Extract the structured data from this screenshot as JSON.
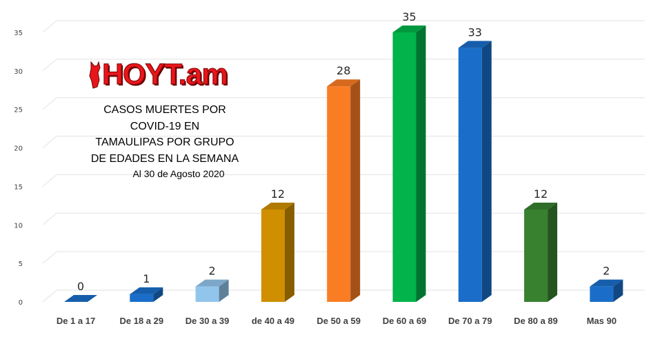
{
  "chart_data": {
    "type": "bar",
    "categories": [
      "De 1 a 17",
      "De 18 a 29",
      "De 30 a 39",
      "de 40 a 49",
      "De 50 a 59",
      "De 60 a 69",
      "De 70 a 79",
      "De 80 a 89",
      "Mas 90"
    ],
    "values": [
      0,
      1,
      2,
      12,
      28,
      35,
      33,
      12,
      2
    ],
    "bar_colors": [
      "#1a6ec9",
      "#1a6ec9",
      "#92c5ec",
      "#cf8f00",
      "#fb7d23",
      "#00b34a",
      "#1a6ec9",
      "#37812f",
      "#1a6ec9"
    ],
    "ylim": [
      0,
      35
    ],
    "yticks": [
      "0",
      "5",
      "10",
      "15",
      "20",
      "25",
      "30",
      "35"
    ],
    "grid": true,
    "bar_style": "3d",
    "title_lines": [
      "CASOS MUERTES POR",
      "COVID-19 EN",
      "TAMAULIPAS POR GRUPO",
      "DE EDADES EN LA SEMANA"
    ],
    "subtitle": "Al 30 de Agosto 2020",
    "xlabel": "",
    "ylabel": ""
  },
  "logo": {
    "text": "HOYT.am",
    "color": "#e8161b",
    "icon": "bull-head-icon"
  }
}
